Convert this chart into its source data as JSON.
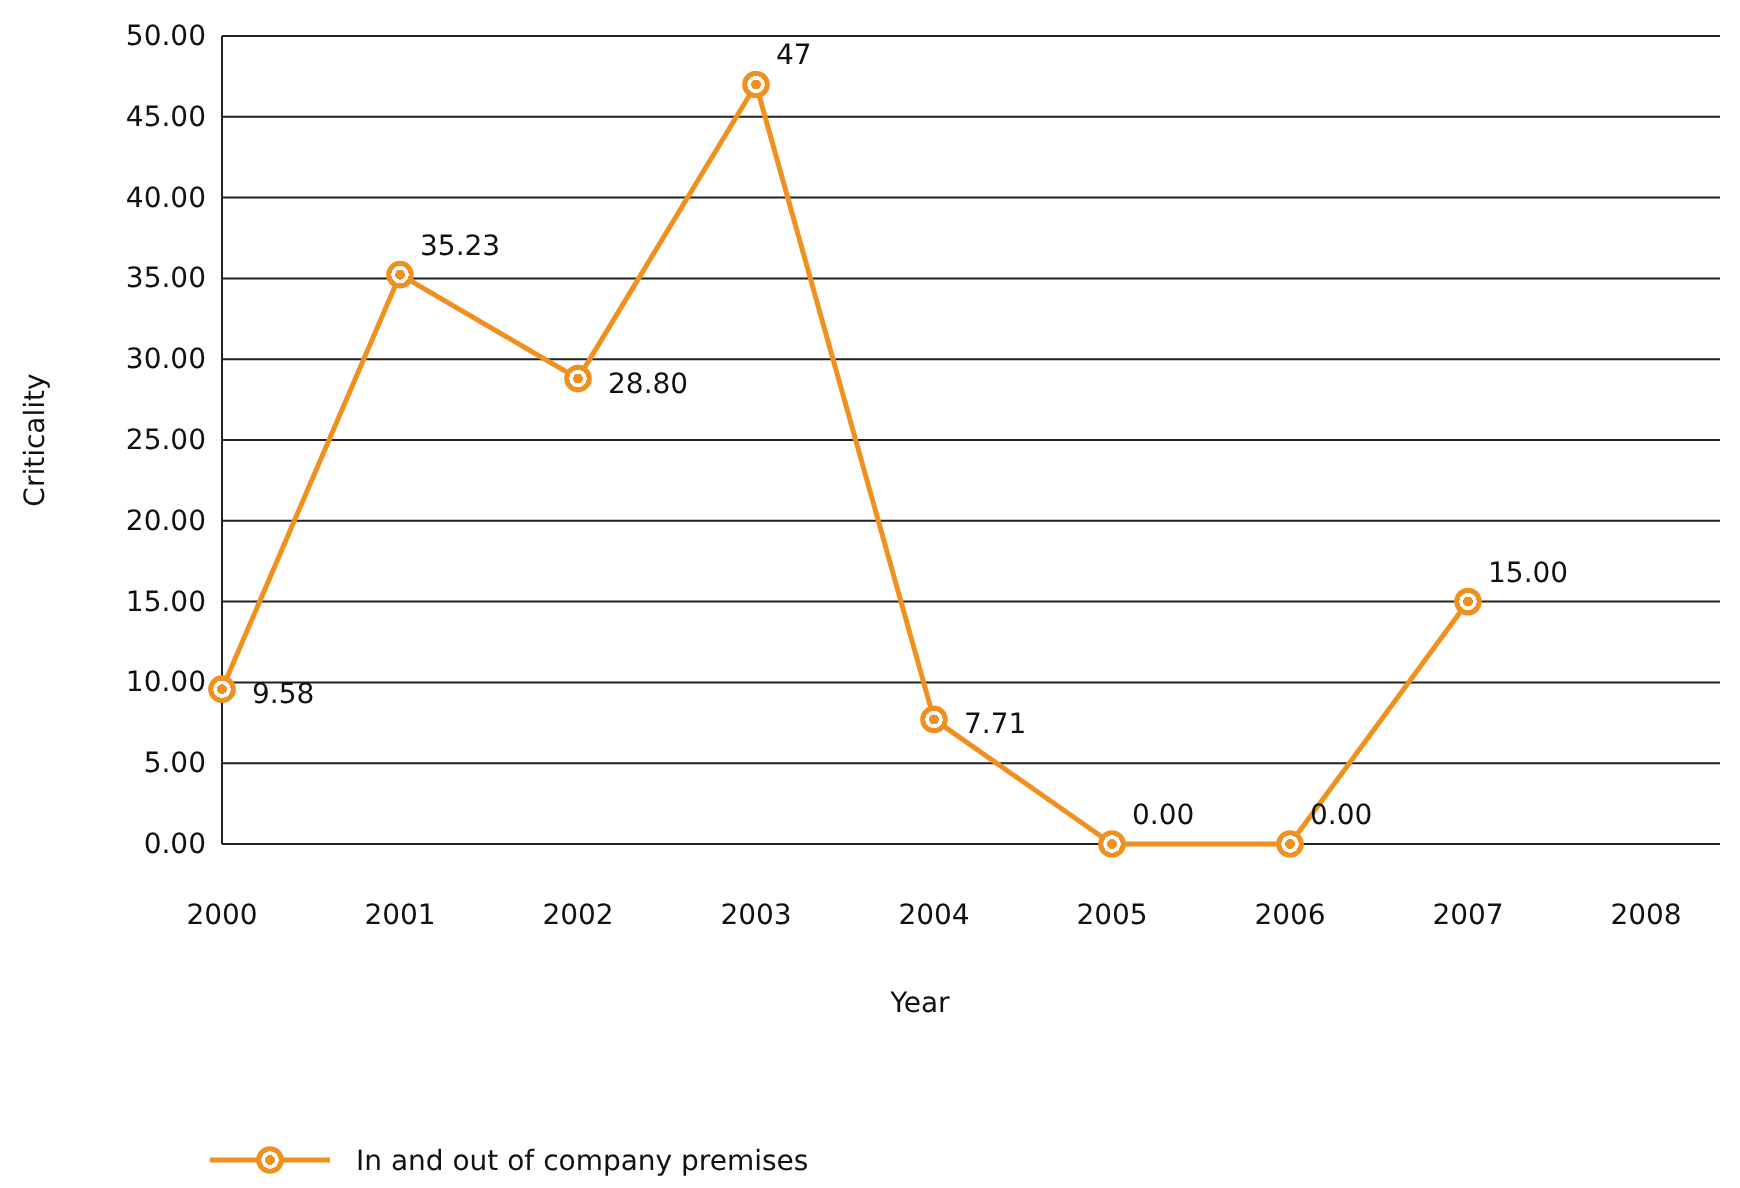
{
  "chart_data": {
    "type": "line",
    "xlabel": "Year",
    "ylabel": "Criticality",
    "categories": [
      "2000",
      "2001",
      "2002",
      "2003",
      "2004",
      "2005",
      "2006",
      "2007",
      "2008"
    ],
    "series": [
      {
        "name": "In and out of company premises",
        "color": "#f0901e",
        "values": [
          9.58,
          35.23,
          28.8,
          47,
          7.71,
          0,
          0,
          15,
          null
        ],
        "value_labels": [
          "9.58",
          "35.23",
          "28.80",
          "47",
          "7.71",
          "0.00",
          "0.00",
          "15.00",
          null
        ]
      }
    ],
    "ylim": [
      0,
      50
    ],
    "yticks": [
      {
        "value": 0,
        "label": "0.00"
      },
      {
        "value": 5,
        "label": "5.00"
      },
      {
        "value": 10,
        "label": "10.00"
      },
      {
        "value": 15,
        "label": "15.00"
      },
      {
        "value": 20,
        "label": "20.00"
      },
      {
        "value": 25,
        "label": "25.00"
      },
      {
        "value": 30,
        "label": "30.00"
      },
      {
        "value": 35,
        "label": "35.00"
      },
      {
        "value": 40,
        "label": "40.00"
      },
      {
        "value": 45,
        "label": "45.00"
      },
      {
        "value": 50,
        "label": "50.00"
      }
    ],
    "grid": "y",
    "legend": "bottom",
    "marker": "circle",
    "line_style": "solid"
  }
}
